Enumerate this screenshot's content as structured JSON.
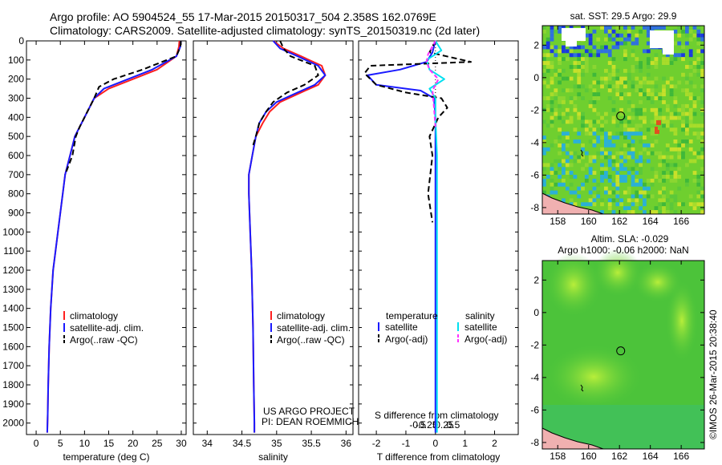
{
  "figure": {
    "title_line1": "Argo profile: AO 5904524_55 17-Mar-2015 20150317_504 2.358S 162.0769E",
    "title_line2": "Climatology: CARS2009. Satellite-adjusted climatology: synTS_20150319.nc (2d later)",
    "credit": "©IMOS 26-Mar-2015 20:38:40",
    "project_line1": "US ARGO PROJECT",
    "project_line2": "PI: DEAN ROEMMICH"
  },
  "colors": {
    "climatology": "#ff2020",
    "satellite": "#1a1aff",
    "argo": "#000000",
    "sal_sat": "#00e0f0",
    "sal_argo": "#ff30ff"
  },
  "chart_data": [
    {
      "type": "line",
      "id": "temperature",
      "xlabel": "temperature (deg C)",
      "ylabel": "",
      "xlim": [
        -2,
        31
      ],
      "ylim": [
        2060,
        0
      ],
      "xticks": [
        0,
        5,
        10,
        15,
        20,
        25,
        30
      ],
      "yticks": [
        0,
        100,
        200,
        300,
        400,
        500,
        600,
        700,
        800,
        900,
        1000,
        1100,
        1200,
        1300,
        1400,
        1500,
        1600,
        1700,
        1800,
        1900,
        2000
      ],
      "legend": [
        "climatology",
        "satellite-adj. clim.",
        "Argo(..raw -QC)"
      ],
      "series": [
        {
          "name": "climatology",
          "x": [
            29.6,
            29.5,
            29,
            25,
            20,
            15,
            12,
            11,
            10,
            9,
            8,
            7,
            6,
            5.5,
            5,
            4.5,
            4,
            3.5,
            3,
            2.7,
            2.5,
            2.4,
            2.3
          ],
          "y": [
            0,
            30,
            80,
            150,
            200,
            250,
            300,
            350,
            400,
            450,
            500,
            600,
            700,
            800,
            900,
            1000,
            1100,
            1200,
            1400,
            1600,
            1800,
            1950,
            2050
          ]
        },
        {
          "name": "satellite-adj. clim.",
          "x": [
            29.9,
            29.8,
            29,
            24,
            19,
            14,
            12,
            11,
            10,
            9,
            8,
            7,
            6,
            5.5,
            5,
            4.5,
            4,
            3.5,
            3,
            2.7,
            2.5,
            2.4,
            2.3
          ],
          "y": [
            0,
            30,
            80,
            150,
            200,
            250,
            300,
            350,
            400,
            450,
            500,
            600,
            700,
            800,
            900,
            1000,
            1100,
            1200,
            1400,
            1600,
            1800,
            1950,
            2050
          ]
        },
        {
          "name": "Argo(..raw -QC)",
          "x": [
            29.9,
            29.8,
            29,
            22,
            16,
            13,
            12,
            11,
            10,
            9,
            8.2,
            7.5,
            6
          ],
          "y": [
            0,
            30,
            80,
            150,
            200,
            240,
            300,
            350,
            400,
            450,
            500,
            600,
            700
          ]
        }
      ]
    },
    {
      "type": "line",
      "id": "salinity",
      "xlabel": "salinity",
      "ylabel": "",
      "xlim": [
        33.8,
        36.1
      ],
      "ylim": [
        2060,
        0
      ],
      "xticks": [
        34,
        34.5,
        35,
        35.5,
        36
      ],
      "yticks": [],
      "legend": [
        "climatology",
        "satellite-adj. clim.",
        "Argo(..raw -QC)"
      ],
      "series": [
        {
          "name": "climatology",
          "x": [
            34.95,
            35.1,
            35.35,
            35.65,
            35.7,
            35.6,
            35.35,
            35.05,
            34.9,
            34.8,
            34.7,
            34.65,
            34.6,
            34.6,
            34.62,
            34.64,
            34.66,
            34.67,
            34.68,
            34.68
          ],
          "y": [
            0,
            40,
            80,
            130,
            180,
            230,
            270,
            320,
            370,
            430,
            500,
            600,
            700,
            800,
            1000,
            1200,
            1500,
            1800,
            2000,
            2050
          ]
        },
        {
          "name": "satellite-adj. clim.",
          "x": [
            34.95,
            35.05,
            35.3,
            35.6,
            35.7,
            35.55,
            35.3,
            35.0,
            34.85,
            34.75,
            34.7,
            34.65,
            34.6,
            34.6,
            34.62,
            34.64,
            34.66,
            34.67,
            34.68,
            34.68
          ],
          "y": [
            0,
            40,
            80,
            130,
            180,
            230,
            270,
            320,
            370,
            430,
            500,
            600,
            700,
            800,
            1000,
            1200,
            1500,
            1800,
            2000,
            2050
          ]
        },
        {
          "name": "Argo(..raw -QC)",
          "x": [
            35.05,
            35.1,
            35.2,
            35.55,
            35.6,
            35.4,
            35.15,
            34.95,
            34.85,
            34.75,
            34.7,
            34.65
          ],
          "y": [
            0,
            40,
            80,
            130,
            180,
            230,
            270,
            320,
            370,
            430,
            500,
            560
          ]
        }
      ]
    },
    {
      "type": "line",
      "id": "difference",
      "xlabel": "T difference from climatology",
      "xlabel_top": "S difference from climatology",
      "ylabel": "",
      "xlim": [
        -2.6,
        2.8
      ],
      "ylim": [
        2060,
        0
      ],
      "xticks": [
        -2,
        -1,
        0,
        1,
        2
      ],
      "xticks_top": [
        -0.5,
        -0.25,
        0,
        0.25,
        0.5
      ],
      "yticks": [],
      "legend_headers": [
        "temperature",
        "salinity"
      ],
      "legend": [
        "satellite",
        "Argo(-adj)",
        "satellite",
        "Argo(-adj)"
      ],
      "series": [
        {
          "name": "temperature satellite",
          "x": [
            0,
            -0.1,
            -0.3,
            -1.2,
            -2.3,
            -2,
            -0.5,
            -0.05,
            0,
            0,
            0,
            0,
            0,
            0
          ],
          "y": [
            0,
            60,
            110,
            150,
            180,
            230,
            260,
            300,
            400,
            600,
            1000,
            1400,
            1800,
            2050
          ]
        },
        {
          "name": "temperature Argo(-adj)",
          "x": [
            0,
            -0.2,
            1.2,
            -2.2,
            -2.4,
            -2,
            -1,
            0.2,
            0.4,
            0.1,
            -0.2,
            -0.1,
            -0.25,
            -0.1
          ],
          "y": [
            0,
            60,
            110,
            130,
            170,
            230,
            270,
            300,
            350,
            400,
            500,
            600,
            800,
            950
          ]
        },
        {
          "name": "salinity satellite",
          "x": [
            0,
            0.2,
            -0.3,
            -0.2,
            0.3,
            -0.2,
            0,
            0,
            0.05,
            0.05,
            0.05,
            0.05
          ],
          "y": [
            0,
            50,
            100,
            150,
            200,
            250,
            300,
            400,
            600,
            1000,
            1500,
            2050
          ]
        },
        {
          "name": "salinity Argo(-adj)",
          "x": [
            0,
            -0.25,
            -0.3,
            -0.2,
            0.1,
            -0.1,
            -0.05,
            0
          ],
          "y": [
            0,
            70,
            110,
            150,
            200,
            260,
            350,
            450
          ]
        }
      ]
    },
    {
      "type": "heatmap",
      "id": "sst_map",
      "title": "sat. SST: 29.5 Argo: 29.9",
      "xlim": [
        157,
        167.5
      ],
      "ylim": [
        -8.4,
        3.2
      ],
      "xticks": [
        158,
        160,
        162,
        164,
        166
      ],
      "yticks": [
        2,
        0,
        -2,
        -4,
        -6,
        -8
      ],
      "marker": {
        "x": 162.08,
        "y": -2.36
      }
    },
    {
      "type": "heatmap",
      "id": "sla_map",
      "title": "Altim. SLA: -0.029",
      "subtitle": "Argo h1000: -0.06 h2000: NaN",
      "xlim": [
        157,
        167.5
      ],
      "ylim": [
        -8.4,
        3.2
      ],
      "xticks": [
        158,
        160,
        162,
        164,
        166
      ],
      "yticks": [
        2,
        0,
        -2,
        -4,
        -6,
        -8
      ],
      "marker": {
        "x": 162.08,
        "y": -2.36
      }
    }
  ]
}
